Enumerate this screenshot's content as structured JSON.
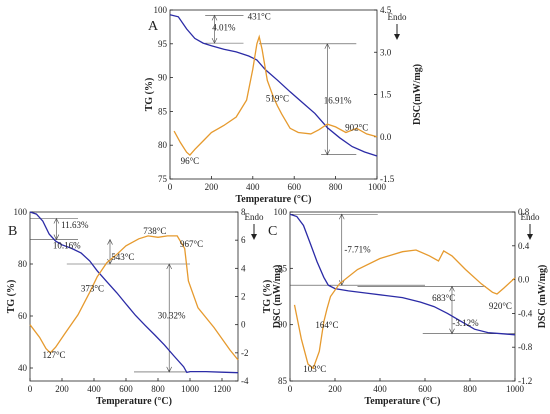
{
  "chart_data": [
    {
      "type": "line",
      "panel_label": "A",
      "xlabel": "Temperature (°C)",
      "ylabel": "TG (%)",
      "y2label": "DSC(mW/mg)",
      "xlim": [
        0,
        1000
      ],
      "ylim": [
        75,
        100
      ],
      "y2lim": [
        -1.5,
        4.5
      ],
      "xticks": [
        0,
        200,
        400,
        600,
        800,
        1000
      ],
      "yticks": [
        75,
        80,
        85,
        90,
        95,
        100
      ],
      "y2ticks": [
        -1.5,
        0.0,
        1.5,
        3.0,
        4.5
      ],
      "y2ticklabels": [
        "-1.5",
        "0.0",
        "1.5",
        "3.0",
        "4.5"
      ],
      "endo_label": "Endo",
      "series": [
        {
          "name": "TG",
          "axis": "left",
          "x": [
            0,
            40,
            80,
            120,
            160,
            200,
            260,
            320,
            380,
            420,
            460,
            520,
            580,
            640,
            700,
            760,
            820,
            880,
            940,
            1000
          ],
          "y": [
            99.3,
            99.0,
            97.2,
            95.8,
            95.1,
            94.7,
            94.2,
            93.8,
            93.2,
            92.6,
            91.2,
            89.6,
            87.9,
            86.3,
            84.7,
            82.6,
            81.1,
            79.8,
            79.0,
            78.4
          ]
        },
        {
          "name": "DSC",
          "axis": "right",
          "x": [
            20,
            50,
            80,
            96,
            120,
            160,
            200,
            260,
            320,
            370,
            400,
            420,
            431,
            445,
            470,
            500,
            519,
            540,
            580,
            620,
            680,
            720,
            760,
            800,
            850,
            902,
            950,
            1000
          ],
          "y": [
            0.2,
            -0.2,
            -0.55,
            -0.65,
            -0.45,
            -0.15,
            0.15,
            0.4,
            0.7,
            1.3,
            2.4,
            3.3,
            3.55,
            3.1,
            2.0,
            1.4,
            1.1,
            0.8,
            0.3,
            0.15,
            0.1,
            0.25,
            0.45,
            0.35,
            0.15,
            0.3,
            0.1,
            0.0
          ]
        }
      ],
      "annotations": [
        {
          "text": "4.01%",
          "x": 260,
          "y": 97.0
        },
        {
          "text": "431°C",
          "x": 431,
          "y": 98.6
        },
        {
          "text": "16.91%",
          "x": 810,
          "y": 86.2
        },
        {
          "text": "519°C",
          "x": 519,
          "y": 86.5
        },
        {
          "text": "902°C",
          "x": 902,
          "y": 82.2
        },
        {
          "text": "96°C",
          "x": 96,
          "y": 77.2
        }
      ]
    },
    {
      "type": "line",
      "panel_label": "B",
      "xlabel": "Temperature (°C)",
      "ylabel": "TG (%)",
      "y2label": "DSC (mW/mg)",
      "xlim": [
        0,
        1300
      ],
      "ylim": [
        35,
        100
      ],
      "y2lim": [
        -4,
        8
      ],
      "xticks": [
        0,
        200,
        400,
        600,
        800,
        1000,
        1200
      ],
      "yticks": [
        40,
        60,
        80,
        100
      ],
      "y2ticks": [
        -4,
        -2,
        0,
        2,
        4,
        6,
        8
      ],
      "y2ticklabels": [
        "-4",
        "-2",
        "0",
        "2",
        "4",
        "6",
        "8"
      ],
      "endo_label": "Endo",
      "series": [
        {
          "name": "TG",
          "axis": "left",
          "x": [
            0,
            40,
            80,
            120,
            160,
            200,
            260,
            320,
            373,
            420,
            480,
            543,
            600,
            660,
            720,
            780,
            840,
            900,
            960,
            980,
            1000,
            1100,
            1200,
            1300
          ],
          "y": [
            100,
            99.2,
            96.5,
            91.5,
            88.8,
            87.4,
            86.0,
            84.2,
            81.2,
            77.4,
            73.2,
            68.9,
            64.6,
            60.2,
            56.4,
            52.7,
            48.9,
            44.6,
            40.5,
            38.3,
            38.6,
            38.6,
            38.4,
            38.2
          ]
        },
        {
          "name": "DSC",
          "axis": "right",
          "x": [
            0,
            60,
            100,
            127,
            160,
            220,
            300,
            373,
            420,
            480,
            543,
            600,
            680,
            738,
            800,
            860,
            920,
            967,
            990,
            1050,
            1150,
            1250,
            1300
          ],
          "y": [
            0,
            -0.9,
            -1.7,
            -2.0,
            -1.6,
            -0.6,
            0.7,
            2.3,
            3.4,
            4.4,
            5.0,
            5.6,
            6.1,
            6.3,
            6.2,
            6.3,
            6.3,
            5.4,
            3.1,
            1.2,
            -0.2,
            -1.8,
            -2.5
          ]
        }
      ],
      "annotations": [
        {
          "text": "11.63%",
          "x": 280,
          "y": 93.9
        },
        {
          "text": "10.16%",
          "x": 230,
          "y": 85.9
        },
        {
          "text": "543°C",
          "x": 580,
          "y": 81.5
        },
        {
          "text": "738°C",
          "x": 780,
          "y": 91.5
        },
        {
          "text": "967°C",
          "x": 1010,
          "y": 86.5
        },
        {
          "text": "373°C",
          "x": 390,
          "y": 69.5
        },
        {
          "text": "30.32%",
          "x": 885,
          "y": 59.0
        },
        {
          "text": "127°C",
          "x": 150,
          "y": 43.8
        }
      ]
    },
    {
      "type": "line",
      "panel_label": "C",
      "xlabel": "Temperature (°C)",
      "ylabel": "TG (%)",
      "y2label": "DSC (mW/mg)",
      "xlim": [
        0,
        1000
      ],
      "ylim": [
        85,
        100
      ],
      "y2lim": [
        -1.2,
        0.8
      ],
      "xticks": [
        0,
        200,
        400,
        600,
        800,
        1000
      ],
      "yticks": [
        85,
        90,
        95,
        100
      ],
      "y2ticks": [
        -1.2,
        -0.8,
        -0.4,
        0.0,
        0.4,
        0.8
      ],
      "y2ticklabels": [
        "-1.2",
        "-0.8",
        "-0.4",
        "0.0",
        "0.4",
        "0.8"
      ],
      "endo_label": "Endo",
      "series": [
        {
          "name": "TG",
          "axis": "left",
          "x": [
            0,
            30,
            60,
            90,
            120,
            150,
            170,
            200,
            260,
            340,
            420,
            500,
            580,
            640,
            700,
            760,
            820,
            880,
            940,
            1000
          ],
          "y": [
            99.8,
            99.6,
            98.8,
            97.2,
            95.6,
            94.2,
            93.5,
            93.2,
            93.0,
            92.8,
            92.6,
            92.4,
            92.0,
            91.6,
            91.0,
            90.3,
            89.6,
            89.3,
            89.2,
            89.1
          ]
        },
        {
          "name": "DSC",
          "axis": "right",
          "x": [
            20,
            50,
            80,
            103,
            130,
            150,
            164,
            180,
            220,
            300,
            400,
            500,
            560,
            620,
            660,
            683,
            720,
            780,
            850,
            900,
            920,
            950,
            1000
          ],
          "y": [
            -0.3,
            -0.7,
            -1.0,
            -1.05,
            -0.85,
            -0.5,
            -0.35,
            -0.2,
            -0.05,
            0.12,
            0.25,
            0.33,
            0.35,
            0.28,
            0.22,
            0.34,
            0.28,
            0.12,
            -0.05,
            -0.15,
            -0.17,
            -0.1,
            0.02
          ]
        }
      ],
      "annotations": [
        {
          "text": "-7.71%",
          "x": 300,
          "y": 96.4
        },
        {
          "text": "683°C",
          "x": 683,
          "y": 92.1
        },
        {
          "text": "-3.12%",
          "x": 780,
          "y": 89.9
        },
        {
          "text": "164°C",
          "x": 164,
          "y": 89.7
        },
        {
          "text": "920°C",
          "x": 935,
          "y": 91.4
        },
        {
          "text": "103°C",
          "x": 110,
          "y": 85.8
        }
      ]
    }
  ]
}
